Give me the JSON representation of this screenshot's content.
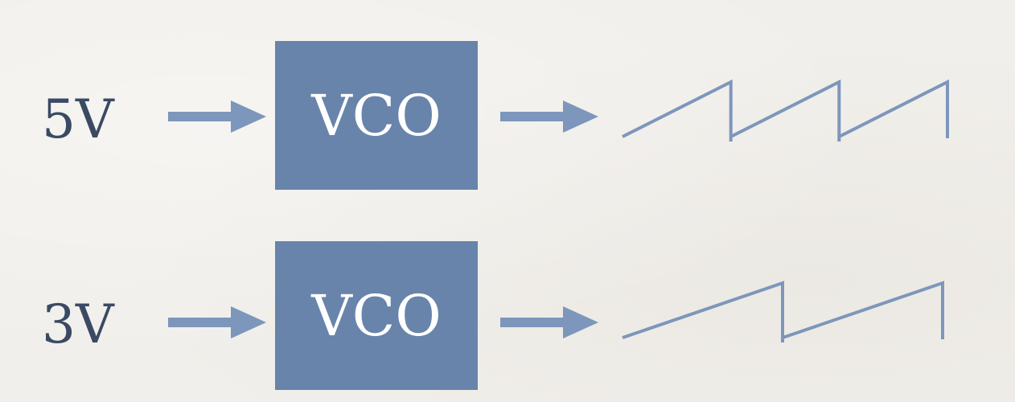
{
  "colors": {
    "background": "#f1efeb",
    "box_fill": "#6884ab",
    "arrow": "#7d96bb",
    "wave_stroke": "#7d96bb",
    "label_text": "#3a4a64",
    "box_text": "#ffffff"
  },
  "rows": [
    {
      "input_voltage": "5V",
      "block_label": "VCO",
      "waveform": "sawtooth",
      "cycles": 3
    },
    {
      "input_voltage": "3V",
      "block_label": "VCO",
      "waveform": "sawtooth",
      "cycles": 2
    }
  ]
}
